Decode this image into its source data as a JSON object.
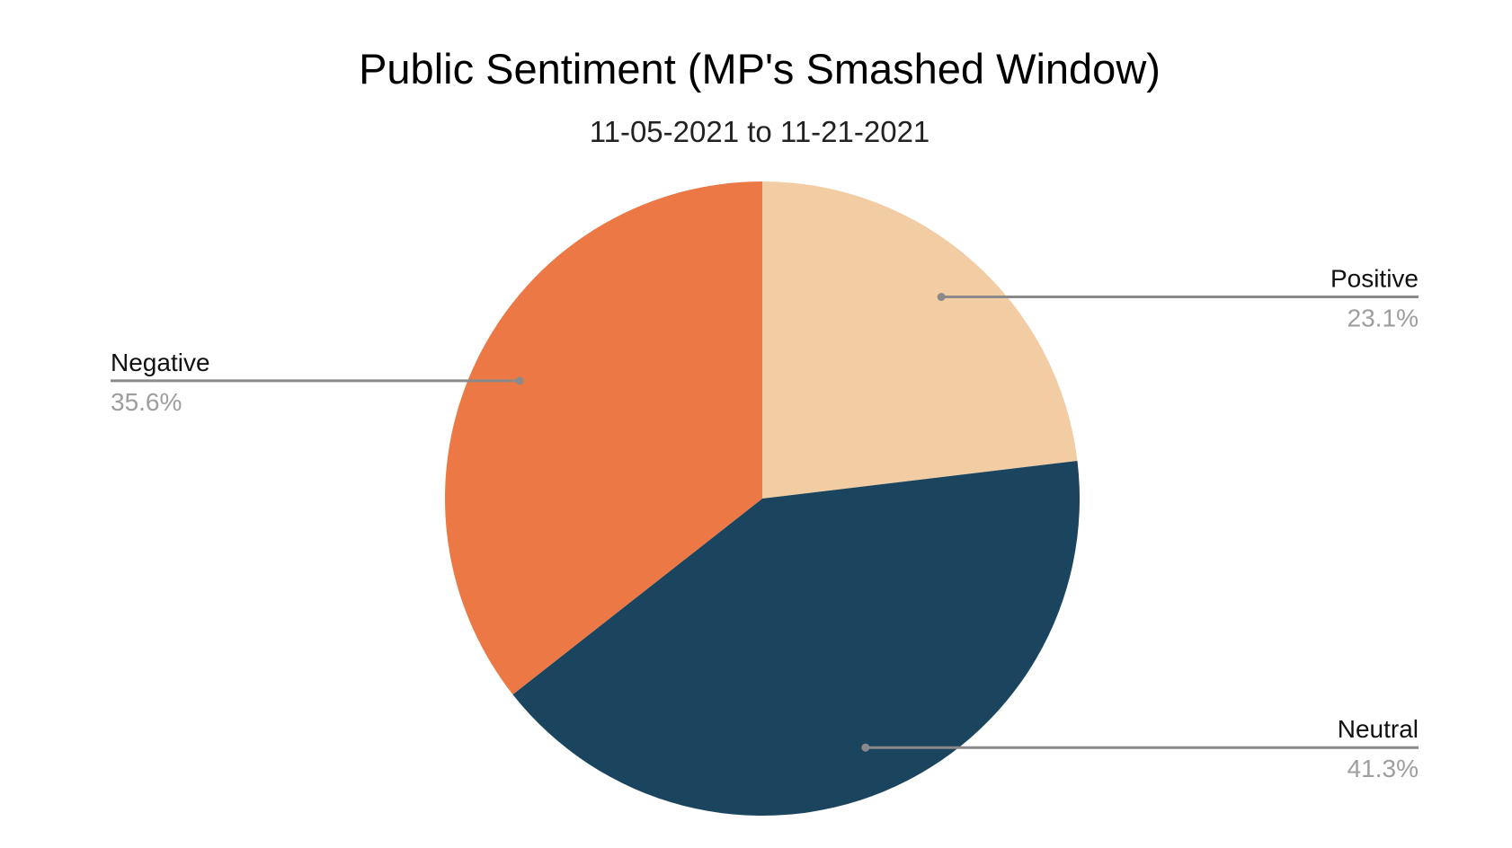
{
  "chart_data": {
    "type": "pie",
    "title": "Public Sentiment (MP's Smashed Window)",
    "subtitle": "11-05-2021 to 11-21-2021",
    "slices": [
      {
        "label": "Positive",
        "value": 23.1,
        "value_label": "23.1%",
        "color": "#f2cca2",
        "label_side": "right"
      },
      {
        "label": "Neutral",
        "value": 41.3,
        "value_label": "41.3%",
        "color": "#1b455e",
        "label_side": "right"
      },
      {
        "label": "Negative",
        "value": 35.6,
        "value_label": "35.6%",
        "color": "#ec7845",
        "label_side": "left"
      }
    ],
    "start": "12 o'clock",
    "direction": "clockwise",
    "legend": "none"
  }
}
